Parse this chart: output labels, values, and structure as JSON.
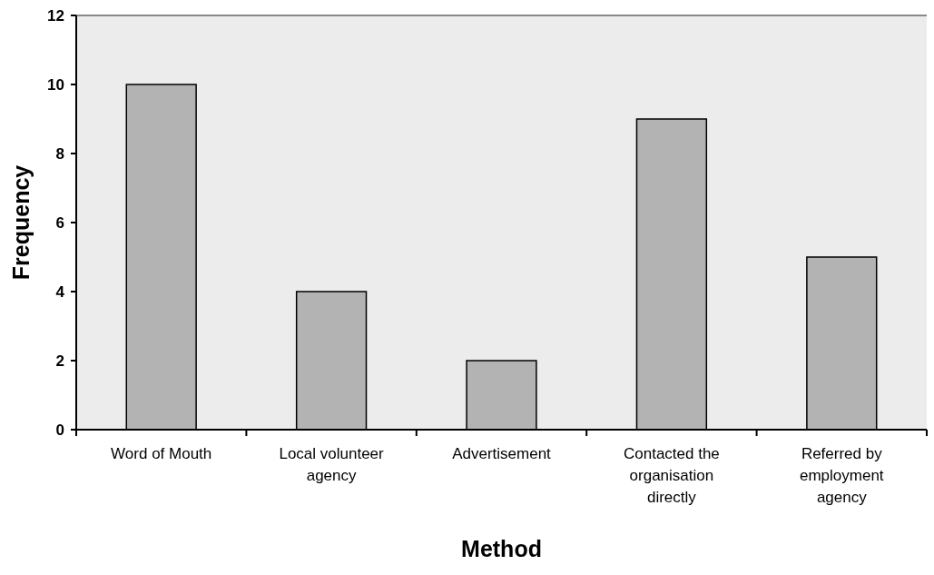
{
  "chart_data": {
    "type": "bar",
    "categories": [
      "Word of Mouth",
      "Local volunteer agency",
      "Advertisement",
      "Contacted the organisation directly",
      "Referred by employment agency"
    ],
    "values": [
      10,
      4,
      2,
      9,
      5
    ],
    "color": "#b3b3b3",
    "xlabel": "Method",
    "ylabel": "Frequency",
    "ylim": [
      0,
      12
    ],
    "yticks": [
      0,
      2,
      4,
      6,
      8,
      10,
      12
    ]
  }
}
